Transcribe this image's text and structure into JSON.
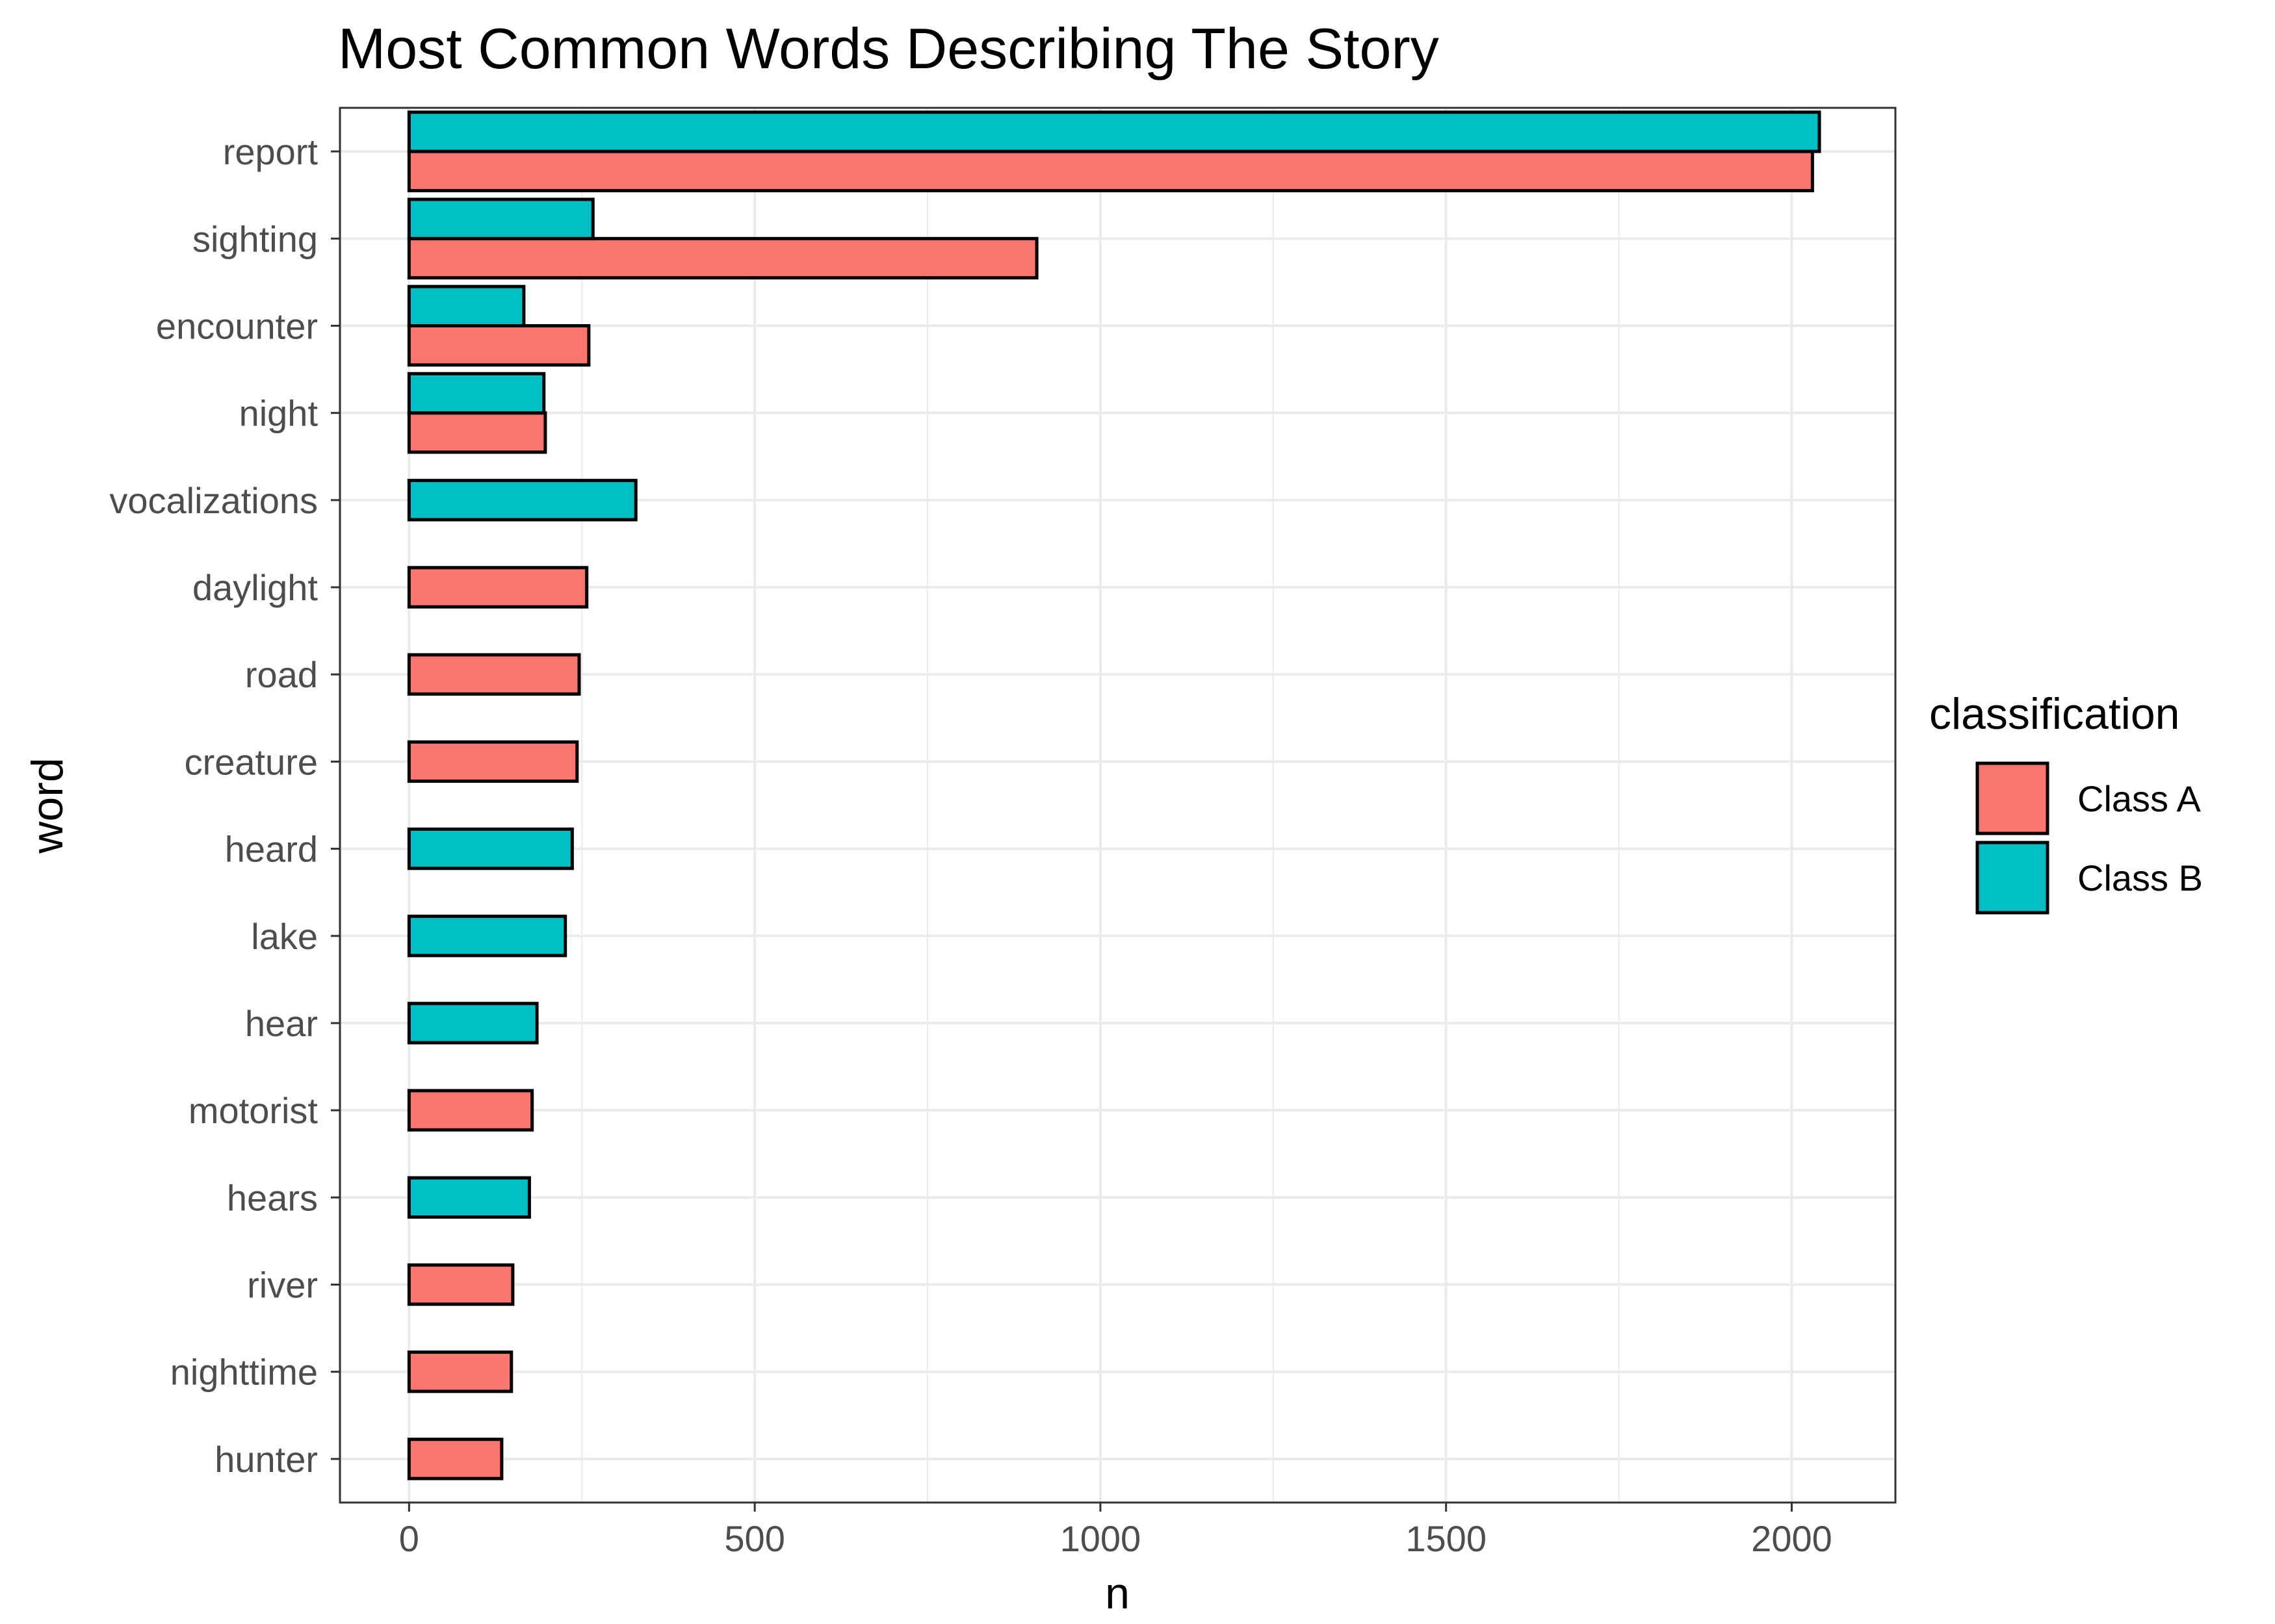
{
  "chart_data": {
    "type": "bar",
    "orientation": "horizontal",
    "position": "dodge",
    "title": "Most Common Words Describing The Story",
    "xlabel": "n",
    "ylabel": "word",
    "xlim": [
      -100,
      2150
    ],
    "xticks": [
      0,
      500,
      1000,
      1500,
      2000
    ],
    "grid": true,
    "legend": {
      "title": "classification",
      "placement": "right",
      "entries": [
        {
          "label": "Class A",
          "color": "#F8766D"
        },
        {
          "label": "Class B",
          "color": "#00BFC4"
        }
      ]
    },
    "categories": [
      "report",
      "sighting",
      "encounter",
      "night",
      "vocalizations",
      "daylight",
      "road",
      "creature",
      "heard",
      "lake",
      "hear",
      "motorist",
      "hears",
      "river",
      "nighttime",
      "hunter"
    ],
    "series": [
      {
        "name": "Class A",
        "color": "#F8766D",
        "values": [
          2030,
          908,
          260,
          197,
          null,
          257,
          246,
          243,
          null,
          null,
          null,
          178,
          null,
          150,
          148,
          134
        ]
      },
      {
        "name": "Class B",
        "color": "#00BFC4",
        "values": [
          2040,
          266,
          166,
          195,
          328,
          null,
          null,
          null,
          236,
          226,
          185,
          null,
          174,
          null,
          null,
          null
        ]
      }
    ]
  }
}
